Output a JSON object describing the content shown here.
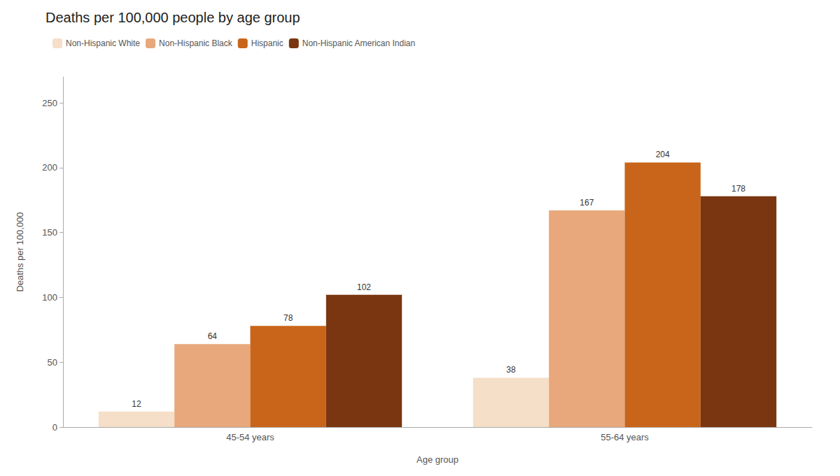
{
  "chart_data": {
    "type": "bar",
    "title": "Deaths per 100,000 people by age group",
    "xlabel": "Age group",
    "ylabel": "Deaths per 100,000",
    "categories": [
      "45-54 years",
      "55-64 years"
    ],
    "series": [
      {
        "name": "Non-Hispanic White",
        "color": "#f5dfc8",
        "values": [
          12,
          38
        ]
      },
      {
        "name": "Non-Hispanic Black",
        "color": "#e8a87c",
        "values": [
          64,
          167
        ]
      },
      {
        "name": "Hispanic",
        "color": "#c8651a",
        "values": [
          78,
          204
        ]
      },
      {
        "name": "Non-Hispanic American Indian",
        "color": "#7a3610",
        "values": [
          102,
          178
        ]
      }
    ],
    "ylim": [
      0,
      270
    ],
    "yticks": [
      0,
      50,
      100,
      150,
      200,
      250
    ],
    "grid": false,
    "legend": "top left",
    "data_labels": true
  }
}
